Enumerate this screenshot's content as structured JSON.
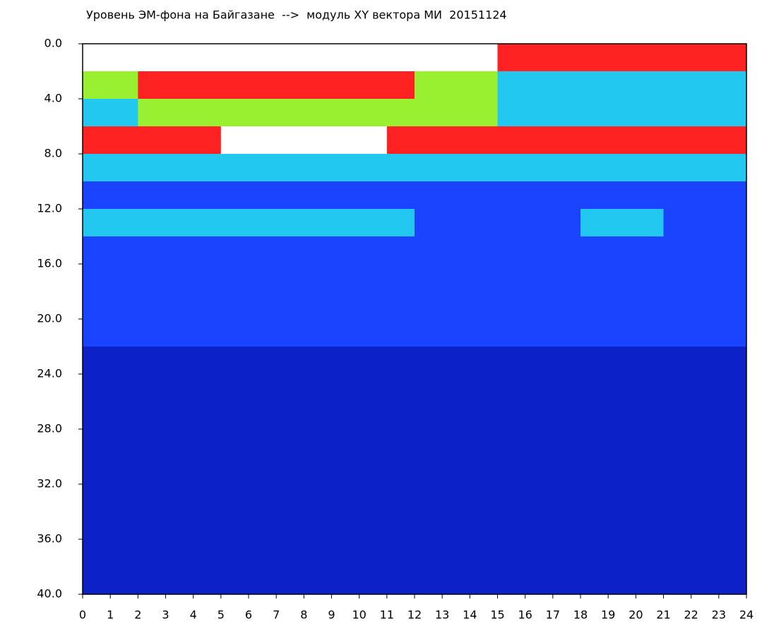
{
  "chart_data": {
    "type": "heatmap",
    "title": "Уровень ЭМ-фона на Байгазане  -->  модуль XY вектора МИ  20151124",
    "xbins": [
      0,
      1,
      2,
      3,
      4,
      5,
      6,
      7,
      8,
      9,
      10,
      11,
      12,
      13,
      14,
      15,
      16,
      17,
      18,
      19,
      20,
      21,
      22,
      23,
      24
    ],
    "ybins": [
      0,
      2,
      4,
      6,
      8,
      10,
      12,
      14,
      16,
      18,
      20,
      22,
      24,
      26,
      28,
      30,
      32,
      34,
      36,
      38,
      40
    ],
    "values": [
      [
        null,
        null,
        null,
        null,
        null,
        null,
        null,
        null,
        null,
        null,
        null,
        null,
        null,
        null,
        null,
        4,
        4,
        4,
        4,
        4,
        4,
        4,
        4,
        4
      ],
      [
        3,
        3,
        4,
        4,
        4,
        4,
        4,
        4,
        4,
        4,
        4,
        4,
        3,
        3,
        3,
        2,
        2,
        2,
        2,
        2,
        2,
        2,
        2,
        2
      ],
      [
        2,
        2,
        3,
        3,
        3,
        3,
        3,
        3,
        3,
        3,
        3,
        3,
        3,
        3,
        3,
        2,
        2,
        2,
        2,
        2,
        2,
        2,
        2,
        2
      ],
      [
        4,
        4,
        4,
        4,
        4,
        5,
        5,
        5,
        5,
        5,
        5,
        4,
        4,
        4,
        4,
        4,
        4,
        4,
        4,
        4,
        4,
        4,
        4,
        4
      ],
      [
        2,
        2,
        2,
        2,
        2,
        2,
        2,
        2,
        2,
        2,
        2,
        2,
        2,
        2,
        2,
        2,
        2,
        2,
        2,
        2,
        2,
        2,
        2,
        2
      ],
      [
        1,
        1,
        1,
        1,
        1,
        1,
        1,
        1,
        1,
        1,
        1,
        1,
        1,
        1,
        1,
        1,
        1,
        1,
        1,
        1,
        1,
        1,
        1,
        1
      ],
      [
        2,
        2,
        2,
        2,
        2,
        2,
        2,
        2,
        2,
        2,
        2,
        2,
        1,
        1,
        1,
        1,
        1,
        1,
        2,
        2,
        2,
        1,
        1,
        1
      ],
      [
        1,
        1,
        1,
        1,
        1,
        1,
        1,
        1,
        1,
        1,
        1,
        1,
        1,
        1,
        1,
        1,
        1,
        1,
        1,
        1,
        1,
        1,
        1,
        1
      ],
      [
        1,
        1,
        1,
        1,
        1,
        1,
        1,
        1,
        1,
        1,
        1,
        1,
        1,
        1,
        1,
        1,
        1,
        1,
        1,
        1,
        1,
        1,
        1,
        1
      ],
      [
        1,
        1,
        1,
        1,
        1,
        1,
        1,
        1,
        1,
        1,
        1,
        1,
        1,
        1,
        1,
        1,
        1,
        1,
        1,
        1,
        1,
        1,
        1,
        1
      ],
      [
        1,
        1,
        1,
        1,
        1,
        1,
        1,
        1,
        1,
        1,
        1,
        1,
        1,
        1,
        1,
        1,
        1,
        1,
        1,
        1,
        1,
        1,
        1,
        1
      ],
      [
        0,
        0,
        0,
        0,
        0,
        0,
        0,
        0,
        0,
        0,
        0,
        0,
        0,
        0,
        0,
        0,
        0,
        0,
        0,
        0,
        0,
        0,
        0,
        0
      ],
      [
        0,
        0,
        0,
        0,
        0,
        0,
        0,
        0,
        0,
        0,
        0,
        0,
        0,
        0,
        0,
        0,
        0,
        0,
        0,
        0,
        0,
        0,
        0,
        0
      ],
      [
        0,
        0,
        0,
        0,
        0,
        0,
        0,
        0,
        0,
        0,
        0,
        0,
        0,
        0,
        0,
        0,
        0,
        0,
        0,
        0,
        0,
        0,
        0,
        0
      ],
      [
        0,
        0,
        0,
        0,
        0,
        0,
        0,
        0,
        0,
        0,
        0,
        0,
        0,
        0,
        0,
        0,
        0,
        0,
        0,
        0,
        0,
        0,
        0,
        0
      ],
      [
        0,
        0,
        0,
        0,
        0,
        0,
        0,
        0,
        0,
        0,
        0,
        0,
        0,
        0,
        0,
        0,
        0,
        0,
        0,
        0,
        0,
        0,
        0,
        0
      ],
      [
        0,
        0,
        0,
        0,
        0,
        0,
        0,
        0,
        0,
        0,
        0,
        0,
        0,
        0,
        0,
        0,
        0,
        0,
        0,
        0,
        0,
        0,
        0,
        0
      ],
      [
        0,
        0,
        0,
        0,
        0,
        0,
        0,
        0,
        0,
        0,
        0,
        0,
        0,
        0,
        0,
        0,
        0,
        0,
        0,
        0,
        0,
        0,
        0,
        0
      ],
      [
        0,
        0,
        0,
        0,
        0,
        0,
        0,
        0,
        0,
        0,
        0,
        0,
        0,
        0,
        0,
        0,
        0,
        0,
        0,
        0,
        0,
        0,
        0,
        0
      ],
      [
        0,
        0,
        0,
        0,
        0,
        0,
        0,
        0,
        0,
        0,
        0,
        0,
        0,
        0,
        0,
        0,
        0,
        0,
        0,
        0,
        0,
        0,
        0,
        0
      ]
    ],
    "colorscale": [
      "#0c22c8",
      "#1a44ff",
      "#22c8f0",
      "#98f030",
      "#ff2222",
      "#ffffff"
    ],
    "xlim": [
      0,
      24
    ],
    "xticks": [
      0,
      1,
      2,
      3,
      4,
      5,
      6,
      7,
      8,
      9,
      10,
      11,
      12,
      13,
      14,
      15,
      16,
      17,
      18,
      19,
      20,
      21,
      22,
      23,
      24
    ],
    "ylim": [
      0,
      40
    ],
    "y_inverted": true,
    "yticks": [
      {
        "value": 0,
        "label": "0.0"
      },
      {
        "value": 4,
        "label": "4.0"
      },
      {
        "value": 8,
        "label": "8.0"
      },
      {
        "value": 12,
        "label": "12.0"
      },
      {
        "value": 16,
        "label": "16.0"
      },
      {
        "value": 20,
        "label": "20.0"
      },
      {
        "value": 24,
        "label": "24.0"
      },
      {
        "value": 28,
        "label": "28.0"
      },
      {
        "value": 32,
        "label": "32.0"
      },
      {
        "value": 36,
        "label": "36.0"
      },
      {
        "value": 40,
        "label": "40.0"
      }
    ]
  }
}
